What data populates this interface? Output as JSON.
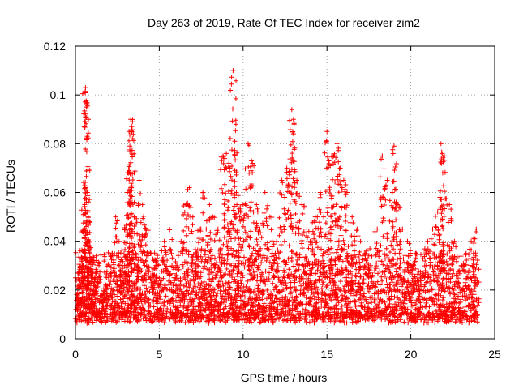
{
  "chart_data": {
    "type": "scatter",
    "title": "Day 263 of 2019, Rate Of TEC Index for receiver zim2",
    "xlabel": "GPS time / hours",
    "ylabel": "ROTI / TECUs",
    "xlim": [
      0,
      25
    ],
    "ylim": [
      0,
      0.12
    ],
    "xticks": [
      0,
      5,
      10,
      15,
      20,
      25
    ],
    "xtick_labels": [
      "0",
      "5",
      "10",
      "15",
      "20",
      "25"
    ],
    "yticks": [
      0,
      0.02,
      0.04,
      0.06,
      0.08,
      0.1,
      0.12
    ],
    "ytick_labels": [
      "0",
      "0.02",
      "0.04",
      "0.06",
      "0.08",
      "0.1",
      "0.12"
    ],
    "grid": true,
    "marker": "+",
    "color": "#ff0000",
    "series": [
      {
        "name": "ROTI",
        "x": [
          0.05,
          0.1,
          0.2,
          0.3,
          0.4,
          0.5,
          0.55,
          0.6,
          0.65,
          0.7,
          0.72,
          0.75,
          0.8,
          0.85,
          0.9,
          1.0,
          1.1,
          1.2,
          1.4,
          1.6,
          1.8,
          2.0,
          2.2,
          2.4,
          2.6,
          2.8,
          3.0,
          3.1,
          3.2,
          3.3,
          3.35,
          3.4,
          3.5,
          3.6,
          3.8,
          4.0,
          4.2,
          4.5,
          4.8,
          5.0,
          5.3,
          5.6,
          6.0,
          6.3,
          6.6,
          6.8,
          7.0,
          7.2,
          7.4,
          7.6,
          7.8,
          8.0,
          8.2,
          8.5,
          8.8,
          9.0,
          9.2,
          9.4,
          9.5,
          9.6,
          9.8,
          10.0,
          10.3,
          10.5,
          10.8,
          11.0,
          11.3,
          11.6,
          12.0,
          12.3,
          12.6,
          12.9,
          13.0,
          13.2,
          13.5,
          13.8,
          14.0,
          14.3,
          14.6,
          14.8,
          15.0,
          15.2,
          15.4,
          15.6,
          15.8,
          16.0,
          16.2,
          16.5,
          16.8,
          17.0,
          17.3,
          17.6,
          18.0,
          18.3,
          18.6,
          18.9,
          19.0,
          19.2,
          19.5,
          19.8,
          20.0,
          20.3,
          20.6,
          21.0,
          21.3,
          21.6,
          21.8,
          21.9,
          22.0,
          22.3,
          22.6,
          23.0,
          23.3,
          23.6,
          23.9
        ],
        "y": [
          0.012,
          0.018,
          0.025,
          0.015,
          0.03,
          0.045,
          0.055,
          0.103,
          0.095,
          0.083,
          0.06,
          0.05,
          0.04,
          0.035,
          0.02,
          0.015,
          0.01,
          0.025,
          0.03,
          0.018,
          0.022,
          0.03,
          0.035,
          0.05,
          0.04,
          0.03,
          0.045,
          0.06,
          0.069,
          0.09,
          0.087,
          0.082,
          0.05,
          0.035,
          0.065,
          0.055,
          0.045,
          0.035,
          0.03,
          0.025,
          0.04,
          0.045,
          0.03,
          0.04,
          0.055,
          0.062,
          0.05,
          0.035,
          0.045,
          0.06,
          0.045,
          0.055,
          0.05,
          0.045,
          0.075,
          0.076,
          0.07,
          0.11,
          0.081,
          0.06,
          0.05,
          0.055,
          0.08,
          0.073,
          0.055,
          0.045,
          0.06,
          0.05,
          0.04,
          0.065,
          0.07,
          0.094,
          0.09,
          0.065,
          0.055,
          0.045,
          0.04,
          0.05,
          0.06,
          0.05,
          0.085,
          0.071,
          0.075,
          0.08,
          0.07,
          0.065,
          0.06,
          0.05,
          0.045,
          0.04,
          0.035,
          0.03,
          0.045,
          0.075,
          0.065,
          0.06,
          0.079,
          0.055,
          0.045,
          0.04,
          0.03,
          0.035,
          0.025,
          0.04,
          0.045,
          0.052,
          0.08,
          0.068,
          0.075,
          0.055,
          0.04,
          0.03,
          0.035,
          0.04,
          0.045
        ],
        "baseline_band": {
          "x_start": 0,
          "x_end": 24,
          "y_min": 0.003,
          "y_max": 0.03,
          "typical": 0.012
        }
      }
    ]
  }
}
